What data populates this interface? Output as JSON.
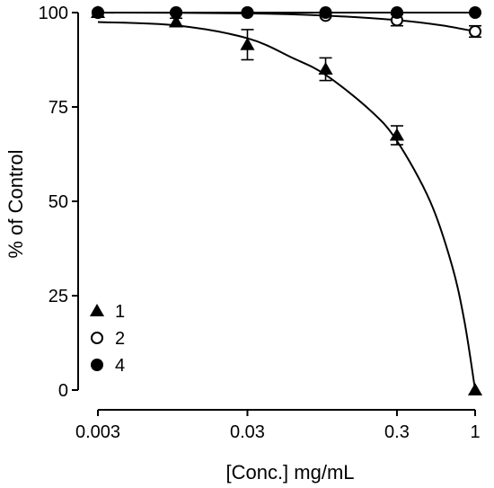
{
  "chart_data": {
    "type": "scatter",
    "title": "",
    "xlabel": "[Conc.] mg/mL",
    "ylabel": "% of Control",
    "x_scale": "log",
    "xlim": [
      0.003,
      1
    ],
    "ylim": [
      0,
      100
    ],
    "x_ticks": [
      {
        "value": 0.003,
        "label": "0.003"
      },
      {
        "value": 0.03,
        "label": "0.03"
      },
      {
        "value": 0.3,
        "label": "0.3"
      },
      {
        "value": 1,
        "label": "1"
      }
    ],
    "y_ticks": [
      {
        "value": 0,
        "label": "0"
      },
      {
        "value": 25,
        "label": "25"
      },
      {
        "value": 50,
        "label": "50"
      },
      {
        "value": 75,
        "label": "75"
      },
      {
        "value": 100,
        "label": "100"
      }
    ],
    "grid": false,
    "legend_position": "bottom-left",
    "series": [
      {
        "name": "1",
        "marker": "triangle-filled",
        "color": "#000000",
        "x": [
          0.003,
          0.01,
          0.03,
          0.1,
          0.3,
          1
        ],
        "y": [
          100,
          97.5,
          91.5,
          85,
          67.5,
          0
        ],
        "err": [
          0.5,
          1.0,
          4.0,
          3.0,
          2.5,
          0
        ],
        "fit": [
          [
            0.003,
            97.5
          ],
          [
            0.01,
            96.6
          ],
          [
            0.03,
            93.2
          ],
          [
            0.06,
            88
          ],
          [
            0.1,
            83.5
          ],
          [
            0.2,
            74
          ],
          [
            0.3,
            66
          ],
          [
            0.5,
            50
          ],
          [
            0.7,
            33
          ],
          [
            0.85,
            18
          ],
          [
            1,
            0
          ]
        ]
      },
      {
        "name": "2",
        "marker": "circle-open",
        "color": "#000000",
        "x": [
          0.003,
          0.01,
          0.03,
          0.1,
          0.3,
          1
        ],
        "y": [
          100,
          100,
          100,
          99.2,
          98,
          95
        ],
        "err": [
          0,
          0,
          0,
          0.5,
          1.5,
          1.5
        ],
        "fit": [
          [
            0.003,
            100
          ],
          [
            0.03,
            99.8
          ],
          [
            0.1,
            99.2
          ],
          [
            0.3,
            98
          ],
          [
            0.6,
            96.6
          ],
          [
            1,
            95
          ]
        ]
      },
      {
        "name": "4",
        "marker": "circle-filled",
        "color": "#000000",
        "x": [
          0.003,
          0.01,
          0.03,
          0.1,
          0.3,
          1
        ],
        "y": [
          100,
          100,
          100,
          100,
          100,
          100
        ],
        "err": [
          0,
          0,
          0,
          0,
          0,
          0
        ],
        "fit": [
          [
            0.003,
            100
          ],
          [
            1,
            100
          ]
        ]
      }
    ]
  }
}
